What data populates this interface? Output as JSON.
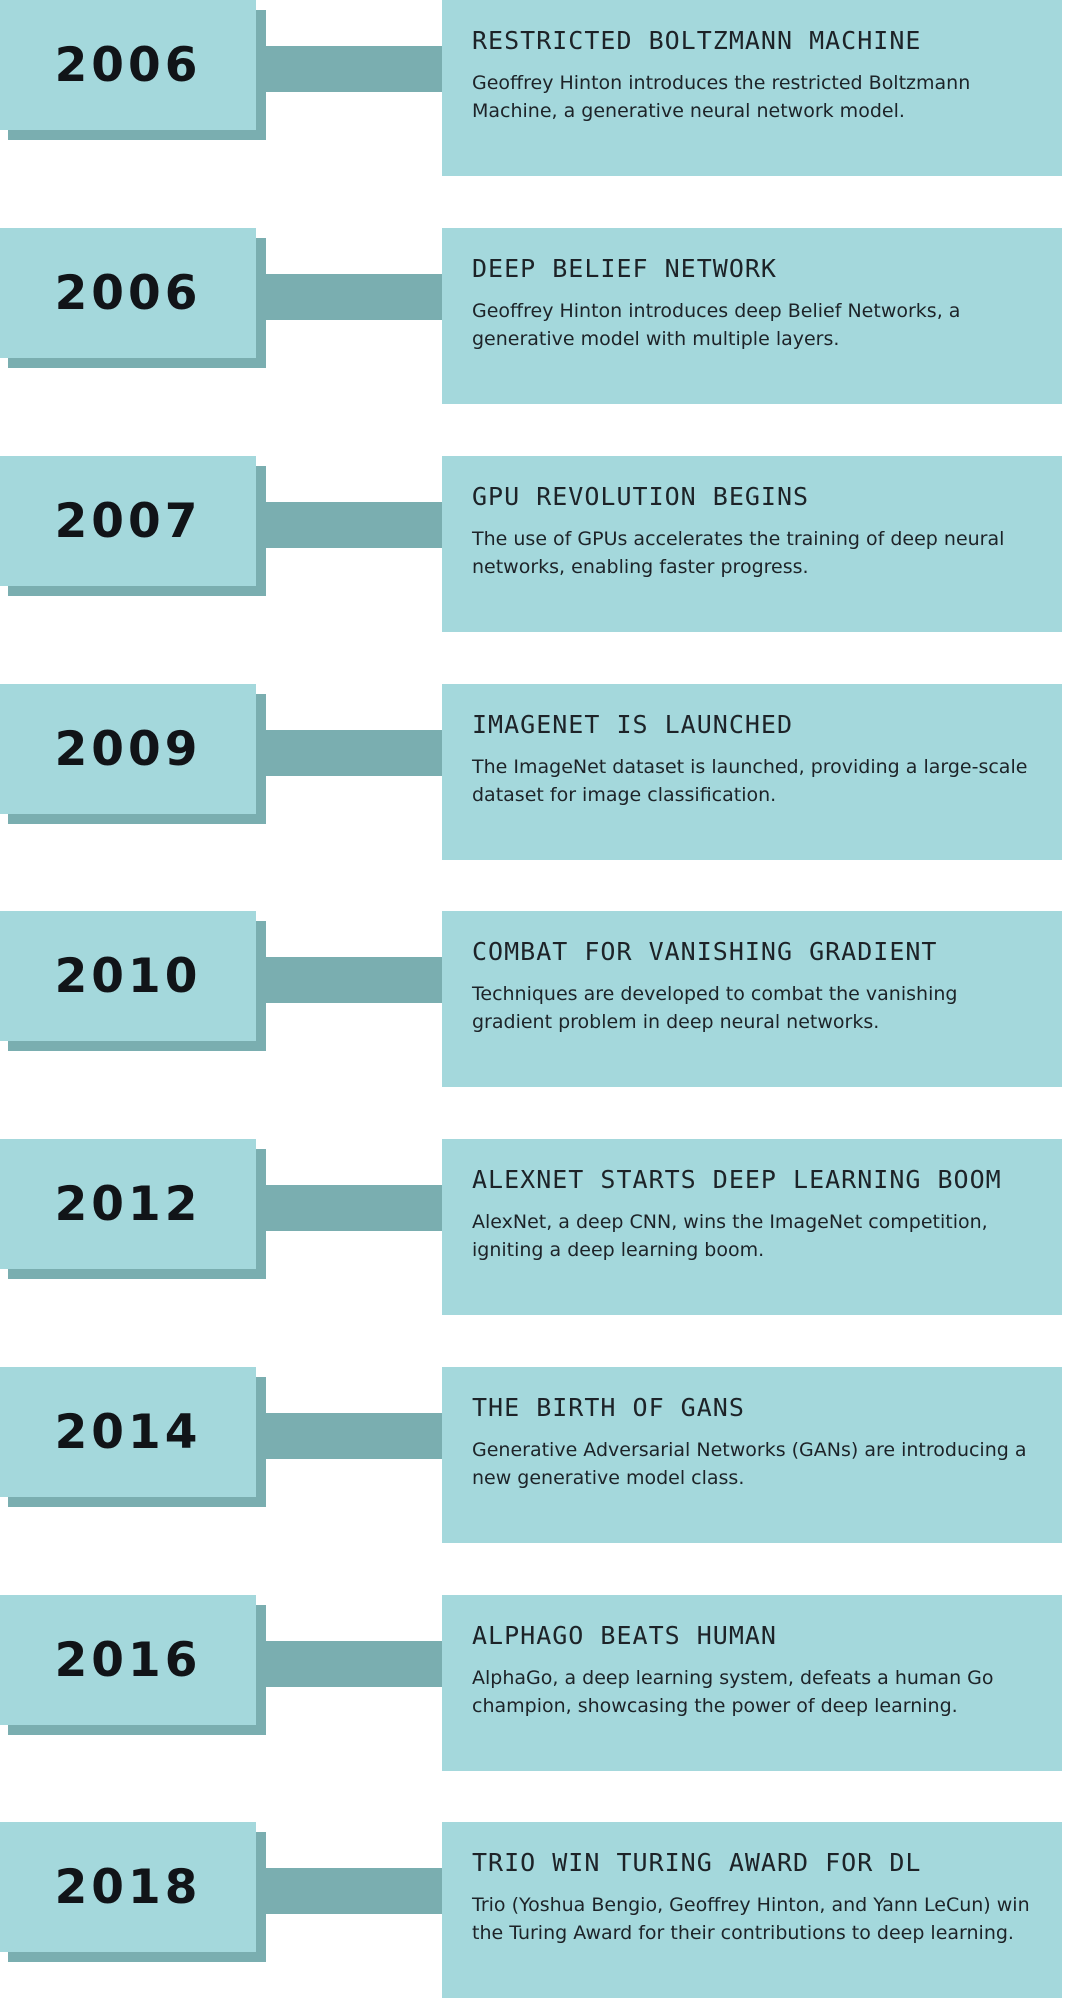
{
  "events": [
    {
      "year": "2006",
      "title": "RESTRICTED BOLTZMANN MACHINE",
      "description": "Geoffrey Hinton introduces the restricted Boltzmann Machine, a generative neural network model."
    },
    {
      "year": "2006",
      "title": "DEEP BELIEF NETWORK",
      "description": "Geoffrey Hinton introduces deep Belief Networks, a generative model with multiple layers."
    },
    {
      "year": "2007",
      "title": "GPU REVOLUTION BEGINS",
      "description": "The use of GPUs accelerates the training of deep neural networks, enabling faster progress."
    },
    {
      "year": "2009",
      "title": "IMAGENET IS LAUNCHED",
      "description": "The ImageNet dataset is launched, providing a large-scale dataset for image classification."
    },
    {
      "year": "2010",
      "title": "COMBAT FOR VANISHING GRADIENT",
      "description": "Techniques are developed to combat the vanishing gradient problem in deep neural networks."
    },
    {
      "year": "2012",
      "title": "ALEXNET STARTS DEEP LEARNING BOOM",
      "description": "AlexNet, a deep CNN, wins the ImageNet competition, igniting a deep learning boom."
    },
    {
      "year": "2014",
      "title": "THE BIRTH OF GANS",
      "description": "Generative Adversarial Networks (GANs) are introducing a new generative model class."
    },
    {
      "year": "2016",
      "title": "ALPHAGO BEATS HUMAN",
      "description": "AlphaGo, a deep learning system, defeats a human Go champion, showcasing the power of deep learning."
    },
    {
      "year": "2018",
      "title": "TRIO WIN TURING AWARD FOR DL",
      "description": "Trio (Yoshua Bengio, Geoffrey Hinton, and Yann LeCun) win the Turing Award for their contributions to deep learning."
    }
  ],
  "colors": {
    "box": "#a4d8dc",
    "shadow": "#7aaeb0",
    "text": "#111418"
  }
}
